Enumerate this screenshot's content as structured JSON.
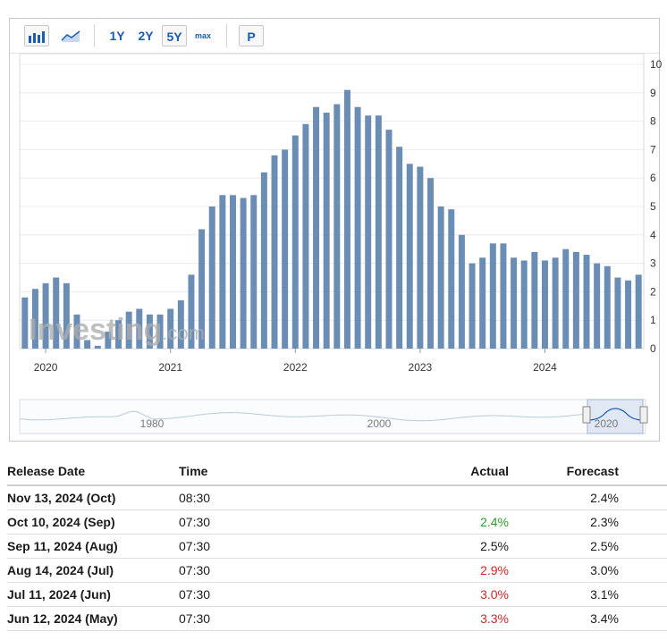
{
  "toolbar": {
    "buttons": [
      "1Y",
      "2Y",
      "5Y",
      "max",
      "P"
    ],
    "active": "5Y",
    "icons": [
      "bar-chart-icon",
      "area-chart-icon"
    ]
  },
  "chart_data": {
    "type": "bar",
    "x_start": "2019-11",
    "x_end": "2024-10",
    "x_ticks": [
      "2020",
      "2021",
      "2022",
      "2023",
      "2024"
    ],
    "y_ticks": [
      "0",
      "1",
      "2",
      "3",
      "4",
      "5",
      "6",
      "7",
      "8",
      "9",
      "10"
    ],
    "ylim": [
      0,
      10
    ],
    "bar_color": "#6a8db5",
    "grid": true,
    "y_axis_side": "right",
    "watermark": "Investing.com",
    "categories": [
      "2019-11",
      "2019-12",
      "2020-01",
      "2020-02",
      "2020-03",
      "2020-04",
      "2020-05",
      "2020-06",
      "2020-07",
      "2020-08",
      "2020-09",
      "2020-10",
      "2020-11",
      "2020-12",
      "2021-01",
      "2021-02",
      "2021-03",
      "2021-04",
      "2021-05",
      "2021-06",
      "2021-07",
      "2021-08",
      "2021-09",
      "2021-10",
      "2021-11",
      "2021-12",
      "2022-01",
      "2022-02",
      "2022-03",
      "2022-04",
      "2022-05",
      "2022-06",
      "2022-07",
      "2022-08",
      "2022-09",
      "2022-10",
      "2022-11",
      "2022-12",
      "2023-01",
      "2023-02",
      "2023-03",
      "2023-04",
      "2023-05",
      "2023-06",
      "2023-07",
      "2023-08",
      "2023-09",
      "2023-10",
      "2023-11",
      "2023-12",
      "2024-01",
      "2024-02",
      "2024-03",
      "2024-04",
      "2024-05",
      "2024-06",
      "2024-07",
      "2024-08",
      "2024-09",
      "2024-10"
    ],
    "values": [
      1.8,
      2.1,
      2.3,
      2.5,
      2.3,
      1.2,
      0.3,
      0.1,
      0.6,
      1.0,
      1.3,
      1.4,
      1.2,
      1.2,
      1.4,
      1.7,
      2.6,
      4.2,
      5.0,
      5.4,
      5.4,
      5.3,
      5.4,
      6.2,
      6.8,
      7.0,
      7.5,
      7.9,
      8.5,
      8.3,
      8.6,
      9.1,
      8.5,
      8.2,
      8.2,
      7.7,
      7.1,
      6.5,
      6.4,
      6.0,
      5.0,
      4.9,
      4.0,
      3.0,
      3.2,
      3.7,
      3.7,
      3.2,
      3.1,
      3.4,
      3.1,
      3.2,
      3.5,
      3.4,
      3.3,
      3.0,
      2.9,
      2.5,
      2.4,
      2.6
    ]
  },
  "navigator": {
    "labels": [
      "1980",
      "2000",
      "2020"
    ]
  },
  "table": {
    "headers": {
      "date": "Release Date",
      "time": "Time",
      "actual": "Actual",
      "forecast": "Forecast"
    },
    "rows": [
      {
        "date": "Nov 13, 2024 (Oct)",
        "time": "08:30",
        "actual": "",
        "actual_color": "",
        "forecast": "2.4%"
      },
      {
        "date": "Oct 10, 2024 (Sep)",
        "time": "07:30",
        "actual": "2.4%",
        "actual_color": "green",
        "forecast": "2.3%"
      },
      {
        "date": "Sep 11, 2024 (Aug)",
        "time": "07:30",
        "actual": "2.5%",
        "actual_color": "",
        "forecast": "2.5%"
      },
      {
        "date": "Aug 14, 2024 (Jul)",
        "time": "07:30",
        "actual": "2.9%",
        "actual_color": "red",
        "forecast": "3.0%"
      },
      {
        "date": "Jul 11, 2024 (Jun)",
        "time": "07:30",
        "actual": "3.0%",
        "actual_color": "red",
        "forecast": "3.1%"
      },
      {
        "date": "Jun 12, 2024 (May)",
        "time": "07:30",
        "actual": "3.3%",
        "actual_color": "red",
        "forecast": "3.4%"
      }
    ]
  }
}
